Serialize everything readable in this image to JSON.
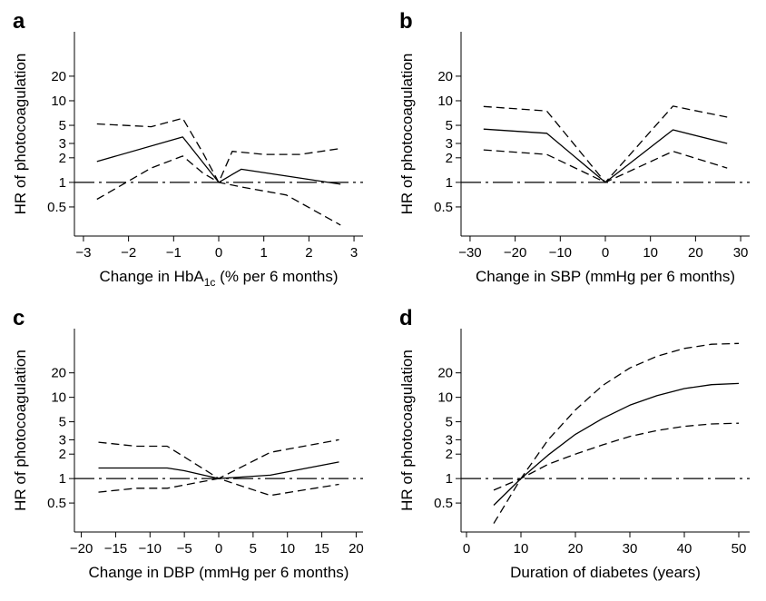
{
  "chart_data": [
    {
      "panel": "a",
      "type": "line",
      "xlabel": "Change in HbA1c (% per 6 months)",
      "xlabel_main": "Change in HbA",
      "xlabel_sub": "1c",
      "xlabel_tail": " (% per 6 months)",
      "ylabel": "HR of photocoagulation",
      "y_scale": "log",
      "xlim": [
        -3.2,
        3.2
      ],
      "ylim": [
        0.22,
        70
      ],
      "xticks": [
        -3,
        -2,
        -1,
        0,
        1,
        2,
        3
      ],
      "xtick_labels": [
        "−3",
        "−2",
        "−1",
        "0",
        "1",
        "2",
        "3"
      ],
      "yticks": [
        0.5,
        1,
        2,
        3,
        5,
        10,
        20
      ],
      "ytick_labels": [
        "0.5",
        "1",
        "2",
        "3",
        "5",
        "10",
        "20"
      ],
      "reference_line": 1,
      "series": [
        {
          "style": "solid",
          "x": [
            -2.7,
            -0.8,
            0,
            0.5,
            2.7
          ],
          "y": [
            1.8,
            3.6,
            1.0,
            1.45,
            0.95
          ]
        },
        {
          "style": "dashed",
          "x": [
            -2.7,
            -1.5,
            -0.8,
            -0.35,
            0,
            0.3,
            1.0,
            1.8,
            2.7
          ],
          "y": [
            5.2,
            4.8,
            6.1,
            2.3,
            1.0,
            2.4,
            2.2,
            2.2,
            2.6
          ]
        },
        {
          "style": "dashed",
          "x": [
            -2.7,
            -1.5,
            -0.8,
            -0.35,
            0,
            0.5,
            1.5,
            2.7
          ],
          "y": [
            0.62,
            1.5,
            2.1,
            1.3,
            1.0,
            0.88,
            0.7,
            0.3
          ]
        }
      ]
    },
    {
      "panel": "b",
      "type": "line",
      "xlabel": "Change in SBP (mmHg per 6 months)",
      "ylabel": "HR of photocoagulation",
      "y_scale": "log",
      "xlim": [
        -32,
        32
      ],
      "ylim": [
        0.22,
        70
      ],
      "xticks": [
        -30,
        -20,
        -10,
        0,
        10,
        20,
        30
      ],
      "xtick_labels": [
        "−30",
        "−20",
        "−10",
        "0",
        "10",
        "20",
        "30"
      ],
      "yticks": [
        0.5,
        1,
        2,
        3,
        5,
        10,
        20
      ],
      "ytick_labels": [
        "0.5",
        "1",
        "2",
        "3",
        "5",
        "10",
        "20"
      ],
      "reference_line": 1,
      "series": [
        {
          "style": "solid",
          "x": [
            -27,
            -13,
            0,
            15,
            27
          ],
          "y": [
            4.5,
            4.0,
            1.0,
            4.4,
            3.0
          ]
        },
        {
          "style": "dashed",
          "x": [
            -27,
            -13,
            0,
            15,
            27
          ],
          "y": [
            8.5,
            7.5,
            1.0,
            8.6,
            6.3
          ]
        },
        {
          "style": "dashed",
          "x": [
            -27,
            -13,
            0,
            15,
            27
          ],
          "y": [
            2.5,
            2.2,
            1.0,
            2.4,
            1.5
          ]
        }
      ]
    },
    {
      "panel": "c",
      "type": "line",
      "xlabel": "Change in DBP (mmHg per 6 months)",
      "ylabel": "HR of photocoagulation",
      "y_scale": "log",
      "xlim": [
        -21,
        21
      ],
      "ylim": [
        0.22,
        70
      ],
      "xticks": [
        -20,
        -15,
        -10,
        -5,
        0,
        5,
        10,
        15,
        20
      ],
      "xtick_labels": [
        "−20",
        "−15",
        "−10",
        "−5",
        "0",
        "5",
        "10",
        "15",
        "20"
      ],
      "yticks": [
        0.5,
        1,
        2,
        3,
        5,
        10,
        20
      ],
      "ytick_labels": [
        "0.5",
        "1",
        "2",
        "3",
        "5",
        "10",
        "20"
      ],
      "reference_line": 1,
      "series": [
        {
          "style": "solid",
          "x": [
            -17.5,
            -7.5,
            -5,
            0,
            7.5,
            17.5
          ],
          "y": [
            1.35,
            1.35,
            1.25,
            1.0,
            1.1,
            1.6
          ]
        },
        {
          "style": "dashed",
          "x": [
            -17.5,
            -12,
            -7.5,
            0,
            7.5,
            17.5
          ],
          "y": [
            2.8,
            2.5,
            2.5,
            1.0,
            2.1,
            3.0
          ]
        },
        {
          "style": "dashed",
          "x": [
            -17.5,
            -12,
            -7.5,
            0,
            7.5,
            17.5
          ],
          "y": [
            0.68,
            0.76,
            0.76,
            1.0,
            0.62,
            0.85
          ]
        }
      ]
    },
    {
      "panel": "d",
      "type": "line",
      "xlabel": "Duration of diabetes (years)",
      "ylabel": "HR of photocoagulation",
      "y_scale": "log",
      "xlim": [
        -1,
        52
      ],
      "ylim": [
        0.22,
        70
      ],
      "xticks": [
        0,
        10,
        20,
        30,
        40,
        50
      ],
      "xtick_labels": [
        "0",
        "10",
        "20",
        "30",
        "40",
        "50"
      ],
      "yticks": [
        0.5,
        1,
        2,
        3,
        5,
        10,
        20
      ],
      "ytick_labels": [
        "0.5",
        "1",
        "2",
        "3",
        "5",
        "10",
        "20"
      ],
      "reference_line": 1,
      "series": [
        {
          "style": "solid",
          "x": [
            5,
            10,
            15,
            20,
            25,
            30,
            35,
            40,
            45,
            50
          ],
          "y": [
            0.47,
            1.0,
            1.95,
            3.5,
            5.5,
            8.0,
            10.5,
            12.8,
            14.3,
            14.8
          ]
        },
        {
          "style": "dashed",
          "x": [
            5,
            10,
            15,
            20,
            25,
            30,
            35,
            40,
            45,
            50
          ],
          "y": [
            0.28,
            1.0,
            3.0,
            7.0,
            14.0,
            23.0,
            32.0,
            40.0,
            45.0,
            46.0
          ]
        },
        {
          "style": "dashed",
          "x": [
            5,
            10,
            15,
            20,
            25,
            30,
            35,
            40,
            45,
            50
          ],
          "y": [
            0.72,
            1.0,
            1.5,
            2.0,
            2.6,
            3.3,
            3.9,
            4.4,
            4.7,
            4.8
          ]
        }
      ]
    }
  ]
}
